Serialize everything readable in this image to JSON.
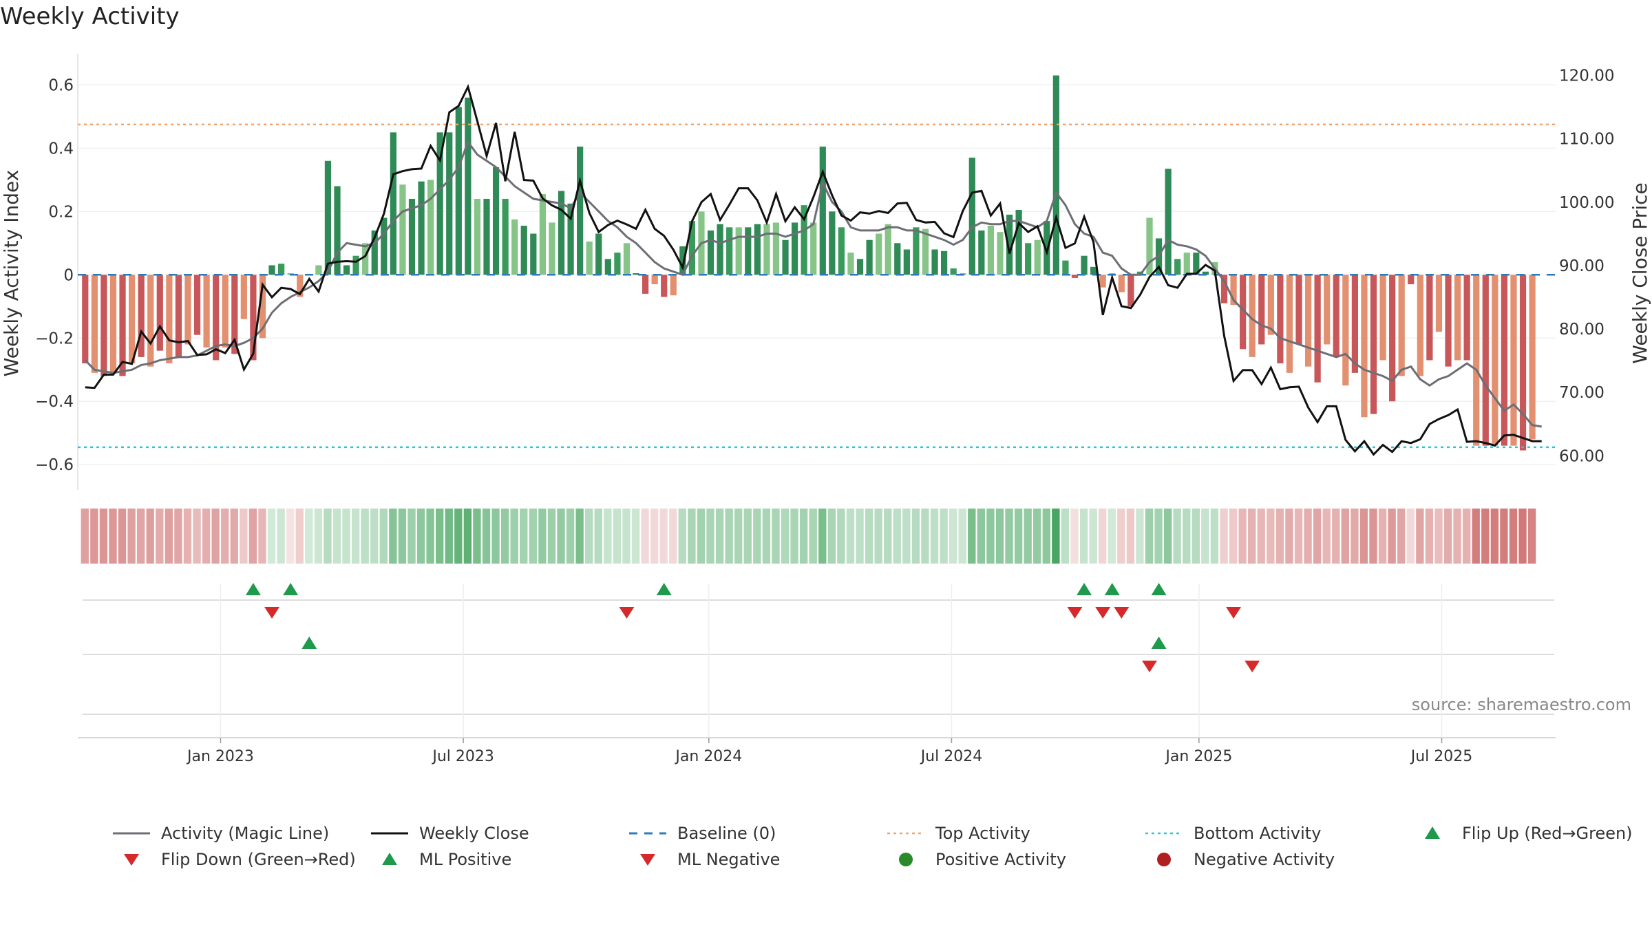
{
  "chart_data": {
    "type": "bar",
    "title": "Weekly Activity",
    "source": "source: sharemaestro.com",
    "ylabel_left": "Weekly Activity Index",
    "ylabel_right": "Weekly Close Price",
    "ylim_left": [
      -0.68,
      0.69
    ],
    "ylim_right": [
      54.6,
      123
    ],
    "yticks_left": [
      {
        "v": 0.6,
        "label": "0.6"
      },
      {
        "v": 0.4,
        "label": "0.4"
      },
      {
        "v": 0.2,
        "label": "0.2"
      },
      {
        "v": 0,
        "label": "0"
      },
      {
        "v": -0.2,
        "label": "−0.2"
      },
      {
        "v": -0.4,
        "label": "−0.4"
      },
      {
        "v": -0.6,
        "label": "−0.6"
      }
    ],
    "yticks_right": [
      {
        "v": 120,
        "label": "120.00"
      },
      {
        "v": 110,
        "label": "110.00"
      },
      {
        "v": 100,
        "label": "100.00"
      },
      {
        "v": 90,
        "label": "90.00"
      },
      {
        "v": 80,
        "label": "80.00"
      },
      {
        "v": 70,
        "label": "70.00"
      },
      {
        "v": 60,
        "label": "60.00"
      }
    ],
    "week_count": 158,
    "xticks": [
      {
        "week": 14.5,
        "label": "Jan 2023"
      },
      {
        "week": 40.5,
        "label": "Jul 2023"
      },
      {
        "week": 66.8,
        "label": "Jan 2024"
      },
      {
        "week": 92.8,
        "label": "Jul 2024"
      },
      {
        "week": 119.3,
        "label": "Jan 2025"
      },
      {
        "week": 145.3,
        "label": "Jul 2025"
      }
    ],
    "top_activity": 0.475,
    "bottom_activity": -0.545,
    "baseline": 0,
    "activity_values": [
      -0.28,
      -0.31,
      -0.32,
      -0.31,
      -0.32,
      -0.28,
      -0.26,
      -0.29,
      -0.24,
      -0.28,
      -0.26,
      -0.22,
      -0.19,
      -0.23,
      -0.27,
      -0.23,
      -0.25,
      -0.14,
      -0.27,
      -0.2,
      0.03,
      0.035,
      0.005,
      -0.07,
      0.003,
      0.03,
      0.36,
      0.28,
      0.03,
      0.06,
      0.1,
      0.14,
      0.18,
      0.45,
      0.285,
      0.24,
      0.295,
      0.3,
      0.45,
      0.45,
      0.53,
      0.56,
      0.24,
      0.24,
      0.34,
      0.24,
      0.175,
      0.155,
      0.13,
      0.255,
      0.165,
      0.265,
      0.225,
      0.405,
      0.105,
      0.13,
      0.05,
      0.07,
      0.1,
      0.005,
      -0.06,
      -0.03,
      -0.07,
      -0.065,
      0.09,
      0.17,
      0.2,
      0.14,
      0.16,
      0.15,
      0.15,
      0.15,
      0.16,
      0.16,
      0.165,
      0.11,
      0.165,
      0.22,
      0.165,
      0.405,
      0.2,
      0.15,
      0.07,
      0.05,
      0.11,
      0.13,
      0.16,
      0.1,
      0.08,
      0.15,
      0.145,
      0.08,
      0.075,
      0.02,
      0.005,
      0.37,
      0.14,
      0.155,
      0.135,
      0.19,
      0.205,
      0.1,
      0.11,
      0.17,
      0.63,
      0.045,
      -0.01,
      0.06,
      0.025,
      -0.04,
      0.005,
      -0.055,
      -0.1,
      0.01,
      0.18,
      0.115,
      0.335,
      0.05,
      0.07,
      0.07,
      0.01,
      0.04,
      -0.09,
      -0.095,
      -0.235,
      -0.26,
      -0.22,
      -0.19,
      -0.28,
      -0.31,
      -0.22,
      -0.29,
      -0.34,
      -0.22,
      -0.26,
      -0.35,
      -0.31,
      -0.45,
      -0.44,
      -0.27,
      -0.4,
      -0.32,
      -0.03,
      -0.32,
      -0.27,
      -0.18,
      -0.29,
      -0.27,
      -0.27,
      -0.54,
      -0.54,
      -0.54,
      -0.54,
      -0.54,
      -0.555,
      -0.52
    ],
    "magic_line": [
      -0.27,
      -0.3,
      -0.305,
      -0.31,
      -0.305,
      -0.3,
      -0.285,
      -0.28,
      -0.27,
      -0.265,
      -0.26,
      -0.26,
      -0.255,
      -0.24,
      -0.225,
      -0.22,
      -0.225,
      -0.215,
      -0.2,
      -0.17,
      -0.12,
      -0.09,
      -0.07,
      -0.055,
      -0.04,
      -0.02,
      0.01,
      0.07,
      0.1,
      0.095,
      0.09,
      0.1,
      0.13,
      0.17,
      0.2,
      0.21,
      0.22,
      0.24,
      0.27,
      0.3,
      0.34,
      0.42,
      0.38,
      0.36,
      0.34,
      0.31,
      0.28,
      0.26,
      0.24,
      0.235,
      0.23,
      0.225,
      0.21,
      0.26,
      0.23,
      0.2,
      0.17,
      0.15,
      0.12,
      0.1,
      0.07,
      0.04,
      0.02,
      0.01,
      0.0,
      0.06,
      0.1,
      0.11,
      0.1,
      0.11,
      0.12,
      0.12,
      0.12,
      0.13,
      0.13,
      0.12,
      0.13,
      0.14,
      0.16,
      0.29,
      0.23,
      0.2,
      0.15,
      0.14,
      0.14,
      0.14,
      0.15,
      0.15,
      0.14,
      0.14,
      0.13,
      0.12,
      0.11,
      0.095,
      0.11,
      0.15,
      0.165,
      0.16,
      0.16,
      0.17,
      0.17,
      0.16,
      0.15,
      0.17,
      0.26,
      0.22,
      0.16,
      0.13,
      0.12,
      0.07,
      0.06,
      0.02,
      0.0,
      0.0,
      0.04,
      0.06,
      0.11,
      0.095,
      0.09,
      0.08,
      0.06,
      0.02,
      -0.02,
      -0.08,
      -0.11,
      -0.14,
      -0.16,
      -0.17,
      -0.2,
      -0.21,
      -0.22,
      -0.23,
      -0.24,
      -0.25,
      -0.26,
      -0.25,
      -0.28,
      -0.3,
      -0.31,
      -0.32,
      -0.335,
      -0.3,
      -0.29,
      -0.33,
      -0.35,
      -0.33,
      -0.32,
      -0.3,
      -0.28,
      -0.3,
      -0.35,
      -0.39,
      -0.43,
      -0.41,
      -0.44,
      -0.475,
      -0.48
    ],
    "weekly_close": [
      70.8,
      70.7,
      72.8,
      72.8,
      74.8,
      74.5,
      79.6,
      77.7,
      80.4,
      78.2,
      77.9,
      78.1,
      75.9,
      76,
      76.8,
      76.2,
      78.3,
      73.6,
      76.1,
      87,
      85,
      86.5,
      86.3,
      85.5,
      87.9,
      85.9,
      90.3,
      90.6,
      90.7,
      90.6,
      91.5,
      94.4,
      98.2,
      104.4,
      104.9,
      105.2,
      105.3,
      108.9,
      106.6,
      114.2,
      115.2,
      118.2,
      112.8,
      107.3,
      112.5,
      103.3,
      111.1,
      103.5,
      103.4,
      100.6,
      99.5,
      98.8,
      97.4,
      103.4,
      98.3,
      95.3,
      96.4,
      97.1,
      96.5,
      95.8,
      98.8,
      95.8,
      94.7,
      92.5,
      89.7,
      97,
      100,
      101.3,
      97.2,
      99.6,
      102.2,
      102.2,
      100.3,
      96.8,
      101.3,
      97,
      99.2,
      97.3,
      100.8,
      104.8,
      101.1,
      97.9,
      97.1,
      98.4,
      98.2,
      98.6,
      98.3,
      99.8,
      99.9,
      97.2,
      96.8,
      96.9,
      95.1,
      94.5,
      98.6,
      101.5,
      101.8,
      97.9,
      99.8,
      91.9,
      96.7,
      95.3,
      96.2,
      92.1,
      97.6,
      92.8,
      93.5,
      97.7,
      93.7,
      82.2,
      88.1,
      83.6,
      83.3,
      85.4,
      88.2,
      89.8,
      86.9,
      86.5,
      88.7,
      88.7,
      90.1,
      89.2,
      78.9,
      71.8,
      73.5,
      73.5,
      71.3,
      73.9,
      70.5,
      70.8,
      70.9,
      67.6,
      65.3,
      67.8,
      67.8,
      62.5,
      60.7,
      62.3,
      60.2,
      61.7,
      60.6,
      62.3,
      62,
      62.6,
      65,
      65.8,
      66.4,
      67.3,
      62.2,
      62.3,
      62,
      61.6,
      63.2,
      63.3,
      62.8,
      62.3,
      62.3
    ],
    "heat_strip": [
      -0.28,
      -0.31,
      -0.32,
      -0.31,
      -0.32,
      -0.28,
      -0.26,
      -0.29,
      -0.24,
      -0.28,
      -0.26,
      -0.22,
      -0.19,
      -0.23,
      -0.27,
      -0.23,
      -0.25,
      -0.14,
      -0.27,
      -0.2,
      0.08,
      0.1,
      -0.05,
      -0.12,
      0.08,
      0.1,
      0.16,
      0.12,
      0.12,
      0.12,
      0.14,
      0.14,
      0.18,
      0.3,
      0.28,
      0.24,
      0.28,
      0.3,
      0.34,
      0.36,
      0.4,
      0.42,
      0.34,
      0.3,
      0.28,
      0.26,
      0.24,
      0.22,
      0.22,
      0.26,
      0.24,
      0.26,
      0.24,
      0.34,
      0.16,
      0.16,
      0.12,
      0.12,
      0.12,
      0.1,
      -0.08,
      -0.08,
      -0.08,
      -0.08,
      0.16,
      0.2,
      0.22,
      0.2,
      0.2,
      0.2,
      0.2,
      0.2,
      0.2,
      0.2,
      0.2,
      0.18,
      0.2,
      0.22,
      0.2,
      0.34,
      0.2,
      0.18,
      0.14,
      0.14,
      0.16,
      0.16,
      0.16,
      0.14,
      0.14,
      0.16,
      0.16,
      0.14,
      0.14,
      0.1,
      0.1,
      0.34,
      0.28,
      0.28,
      0.28,
      0.26,
      0.26,
      0.26,
      0.26,
      0.28,
      0.48,
      0.14,
      -0.06,
      0.12,
      0.1,
      -0.1,
      0.08,
      -0.12,
      -0.14,
      0.1,
      0.24,
      0.22,
      0.28,
      0.16,
      0.16,
      0.16,
      0.12,
      0.14,
      -0.12,
      -0.14,
      -0.2,
      -0.22,
      -0.2,
      -0.19,
      -0.22,
      -0.24,
      -0.2,
      -0.23,
      -0.26,
      -0.2,
      -0.22,
      -0.27,
      -0.25,
      -0.32,
      -0.32,
      -0.22,
      -0.3,
      -0.26,
      -0.08,
      -0.26,
      -0.22,
      -0.18,
      -0.24,
      -0.22,
      -0.22,
      -0.4,
      -0.4,
      -0.4,
      -0.4,
      -0.4,
      -0.42,
      -0.38
    ],
    "flip_up_weeks": [
      18,
      22,
      62,
      107,
      110,
      115
    ],
    "flip_down_weeks": [
      20,
      58,
      106,
      109,
      111,
      123
    ],
    "ml_positive_weeks": [
      24,
      115
    ],
    "ml_negative_weeks": [
      114,
      125
    ],
    "legend": [
      {
        "label": "Activity (Magic Line)",
        "type": "line",
        "color": "#6e6e76"
      },
      {
        "label": "Weekly Close",
        "type": "line",
        "color": "#111111"
      },
      {
        "label": "Baseline (0)",
        "type": "dash",
        "color": "#2b7bba"
      },
      {
        "label": "Top Activity",
        "type": "dot",
        "color": "#f0a36a"
      },
      {
        "label": "Bottom Activity",
        "type": "dot",
        "color": "#2ec4d6"
      },
      {
        "label": "Flip Up (Red→Green)",
        "type": "tri-up",
        "color": "#1f9a4c"
      },
      {
        "label": "Flip Down (Green→Red)",
        "type": "tri-down",
        "color": "#d62a2a"
      },
      {
        "label": "ML Positive",
        "type": "tri-up",
        "color": "#1f9a4c"
      },
      {
        "label": "ML Negative",
        "type": "tri-down",
        "color": "#d62a2a"
      },
      {
        "label": "Positive Activity",
        "type": "circle",
        "color": "#2a8a2a"
      },
      {
        "label": "Negative Activity",
        "type": "circle",
        "color": "#b02020"
      }
    ]
  }
}
